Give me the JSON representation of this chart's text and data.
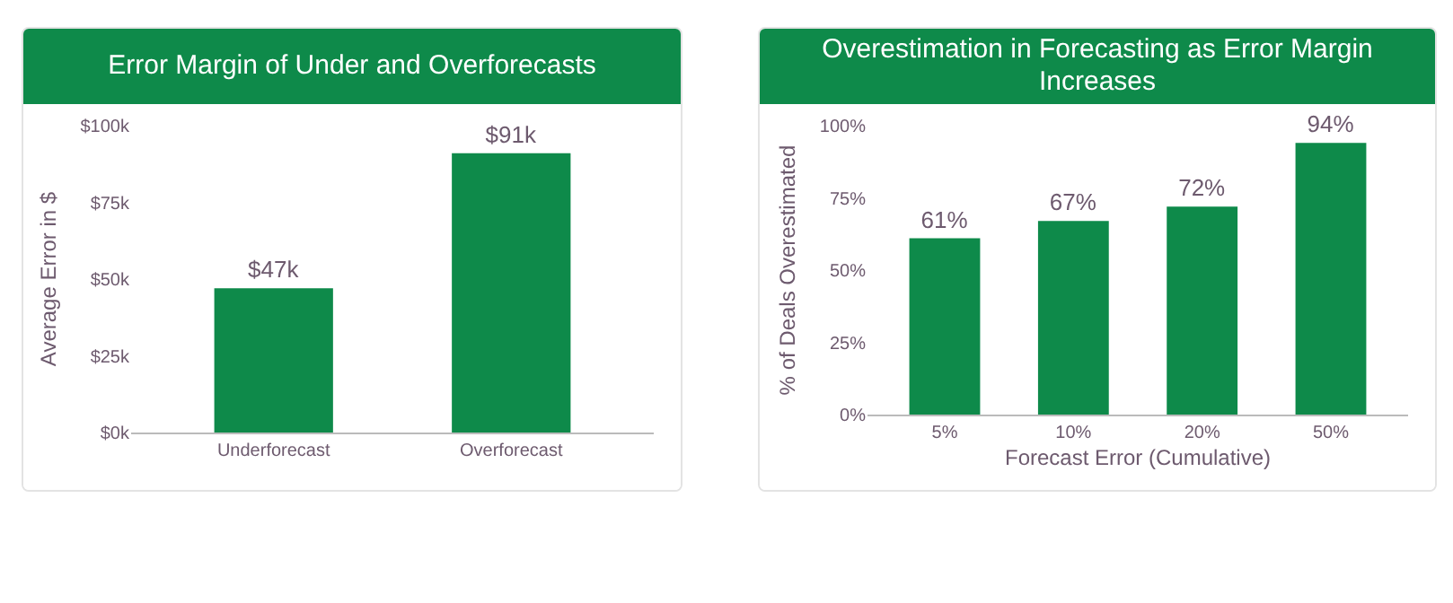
{
  "chart_data": [
    {
      "type": "bar",
      "title": "Error Margin of Under and Overforecasts",
      "ylabel": "Average Error in $",
      "categories": [
        "Underforecast",
        "Overforecast"
      ],
      "values": [
        47,
        91
      ],
      "value_labels": [
        "$47k",
        "$91k"
      ],
      "color": "#0e8a4a",
      "ylim": [
        0,
        100
      ],
      "yticks": [
        {
          "value": 0,
          "label": "$0k"
        },
        {
          "value": 25,
          "label": "$25k"
        },
        {
          "value": 50,
          "label": "$50k"
        },
        {
          "value": 75,
          "label": "$75k"
        },
        {
          "value": 100,
          "label": "$100k"
        }
      ],
      "grid": false
    },
    {
      "type": "bar",
      "title": "Overestimation in Forecasting as Error Margin Increases",
      "xlabel": "Forecast Error (Cumulative)",
      "ylabel": "% of Deals Overestimated",
      "categories": [
        "5%",
        "10%",
        "20%",
        "50%"
      ],
      "values": [
        61,
        67,
        72,
        94
      ],
      "value_labels": [
        "61%",
        "67%",
        "72%",
        "94%"
      ],
      "color": "#0e8a4a",
      "ylim": [
        0,
        100
      ],
      "yticks": [
        {
          "value": 0,
          "label": "0%"
        },
        {
          "value": 25,
          "label": "25%"
        },
        {
          "value": 50,
          "label": "50%"
        },
        {
          "value": 75,
          "label": "75%"
        },
        {
          "value": 100,
          "label": "100%"
        }
      ],
      "grid": false
    }
  ]
}
